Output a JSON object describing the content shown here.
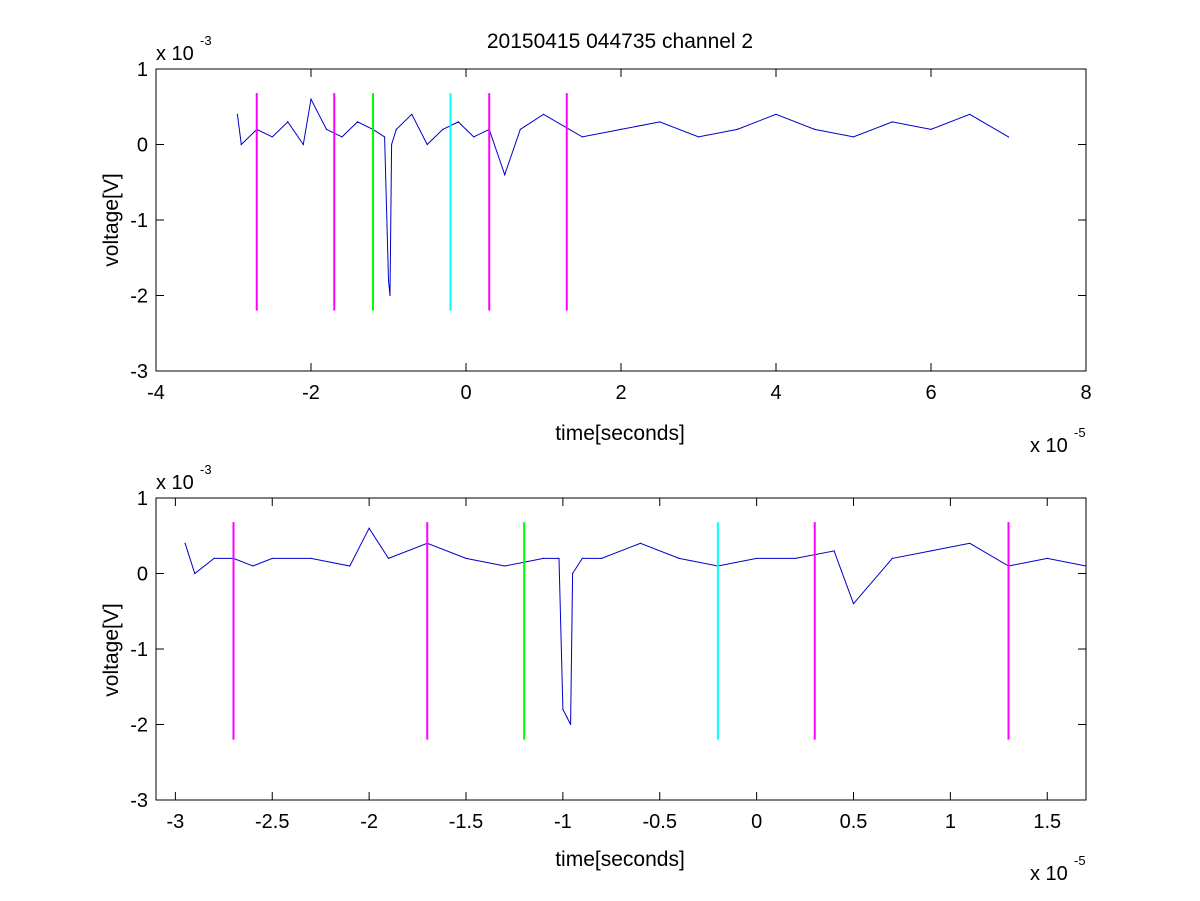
{
  "figure_title": "20150415 044735 channel 2",
  "colors": {
    "signal": "#0000c8",
    "magenta": "#ff00ff",
    "green": "#00ff00",
    "cyan": "#00ffff",
    "axes": "#000000"
  },
  "chart_data": [
    {
      "type": "line",
      "title": "20150415 044735 channel 2",
      "xlabel": "time[seconds]",
      "ylabel": "voltage[V]",
      "x_multiplier_label": {
        "base": "x 10",
        "exp": "-5"
      },
      "y_multiplier_label": {
        "base": "x 10",
        "exp": "-3"
      },
      "xlim": [
        -4e-05,
        8e-05
      ],
      "ylim": [
        -0.003,
        0.001
      ],
      "xticks": [
        -4e-05,
        -2e-05,
        0,
        2e-05,
        4e-05,
        6e-05,
        8e-05
      ],
      "xtick_labels": [
        "-4",
        "-2",
        "0",
        "2",
        "4",
        "6",
        "8"
      ],
      "yticks": [
        -0.003,
        -0.002,
        -0.001,
        0,
        0.001
      ],
      "ytick_labels": [
        "-3",
        "-2",
        "-1",
        "0",
        "1"
      ],
      "grid": false,
      "series": [
        {
          "color": "#0000c8",
          "x": [
            -2.95e-05,
            -2.9e-05,
            -2.7e-05,
            -2.5e-05,
            -2.3e-05,
            -2.1e-05,
            -2e-05,
            -1.8e-05,
            -1.6e-05,
            -1.4e-05,
            -1.2e-05,
            -1.05e-05,
            -1e-05,
            -9.8e-06,
            -9.6e-06,
            -9e-06,
            -7e-06,
            -5e-06,
            -3e-06,
            -1e-06,
            1e-06,
            3e-06,
            5e-06,
            7e-06,
            1e-05,
            1.5e-05,
            2e-05,
            2.5e-05,
            3e-05,
            3.5e-05,
            4e-05,
            4.5e-05,
            5e-05,
            5.5e-05,
            6e-05,
            6.5e-05,
            7e-05
          ],
          "y": [
            0.0004,
            0.0,
            0.0002,
            0.0001,
            0.0003,
            0.0,
            0.0006,
            0.0002,
            0.0001,
            0.0003,
            0.0002,
            0.0001,
            -0.0018,
            -0.002,
            0.0,
            0.0002,
            0.0004,
            0.0,
            0.0002,
            0.0003,
            0.0001,
            0.0002,
            -0.0004,
            0.0002,
            0.0004,
            0.0001,
            0.0002,
            0.0003,
            0.0001,
            0.0002,
            0.0004,
            0.0002,
            0.0001,
            0.0003,
            0.0002,
            0.0004,
            0.0001
          ]
        }
      ],
      "vertical_markers": [
        {
          "x": -2.7e-05,
          "color": "#ff00ff",
          "ymin": -0.0022,
          "ymax": 0.00068
        },
        {
          "x": -1.7e-05,
          "color": "#ff00ff",
          "ymin": -0.0022,
          "ymax": 0.00068
        },
        {
          "x": -1.2e-05,
          "color": "#00ff00",
          "ymin": -0.0022,
          "ymax": 0.00068
        },
        {
          "x": -2e-06,
          "color": "#00ffff",
          "ymin": -0.0022,
          "ymax": 0.00068
        },
        {
          "x": 3e-06,
          "color": "#ff00ff",
          "ymin": -0.0022,
          "ymax": 0.00068
        },
        {
          "x": 1.3e-05,
          "color": "#ff00ff",
          "ymin": -0.0022,
          "ymax": 0.00068
        }
      ]
    },
    {
      "type": "line",
      "title": "",
      "xlabel": "time[seconds]",
      "ylabel": "voltage[V]",
      "x_multiplier_label": {
        "base": "x 10",
        "exp": "-5"
      },
      "y_multiplier_label": {
        "base": "x 10",
        "exp": "-3"
      },
      "xlim": [
        -3.1e-05,
        1.7e-05
      ],
      "ylim": [
        -0.003,
        0.001
      ],
      "xticks": [
        -3e-05,
        -2.5e-05,
        -2e-05,
        -1.5e-05,
        -1e-05,
        -5e-06,
        0,
        5e-06,
        1e-05,
        1.5e-05
      ],
      "xtick_labels": [
        "-3",
        "-2.5",
        "-2",
        "-1.5",
        "-1",
        "-0.5",
        "0",
        "0.5",
        "1",
        "1.5"
      ],
      "yticks": [
        -0.003,
        -0.002,
        -0.001,
        0,
        0.001
      ],
      "ytick_labels": [
        "-3",
        "-2",
        "-1",
        "0",
        "1"
      ],
      "grid": false,
      "series": [
        {
          "color": "#0000c8",
          "x": [
            -2.95e-05,
            -2.9e-05,
            -2.8e-05,
            -2.7e-05,
            -2.6e-05,
            -2.5e-05,
            -2.3e-05,
            -2.1e-05,
            -2e-05,
            -1.9e-05,
            -1.7e-05,
            -1.5e-05,
            -1.3e-05,
            -1.1e-05,
            -1.02e-05,
            -1e-05,
            -9.8e-06,
            -9.6e-06,
            -9.5e-06,
            -9e-06,
            -8e-06,
            -6e-06,
            -4e-06,
            -2e-06,
            0,
            2e-06,
            4e-06,
            5e-06,
            7e-06,
            9e-06,
            1.1e-05,
            1.3e-05,
            1.5e-05,
            1.7e-05
          ],
          "y": [
            0.0004,
            0.0,
            0.0002,
            0.0002,
            0.0001,
            0.0002,
            0.0002,
            0.0001,
            0.0006,
            0.0002,
            0.0004,
            0.0002,
            0.0001,
            0.0002,
            0.0002,
            -0.0018,
            -0.0019,
            -0.002,
            0.0,
            0.0002,
            0.0002,
            0.0004,
            0.0002,
            0.0001,
            0.0002,
            0.0002,
            0.0003,
            -0.0004,
            0.0002,
            0.0003,
            0.0004,
            0.0001,
            0.0002,
            0.0001
          ]
        }
      ],
      "vertical_markers": [
        {
          "x": -2.7e-05,
          "color": "#ff00ff",
          "ymin": -0.0022,
          "ymax": 0.00068
        },
        {
          "x": -1.7e-05,
          "color": "#ff00ff",
          "ymin": -0.0022,
          "ymax": 0.00068
        },
        {
          "x": -1.2e-05,
          "color": "#00ff00",
          "ymin": -0.0022,
          "ymax": 0.00068
        },
        {
          "x": -2e-06,
          "color": "#00ffff",
          "ymin": -0.0022,
          "ymax": 0.00068
        },
        {
          "x": 3e-06,
          "color": "#ff00ff",
          "ymin": -0.0022,
          "ymax": 0.00068
        },
        {
          "x": 1.3e-05,
          "color": "#ff00ff",
          "ymin": -0.0022,
          "ymax": 0.00068
        }
      ]
    }
  ]
}
